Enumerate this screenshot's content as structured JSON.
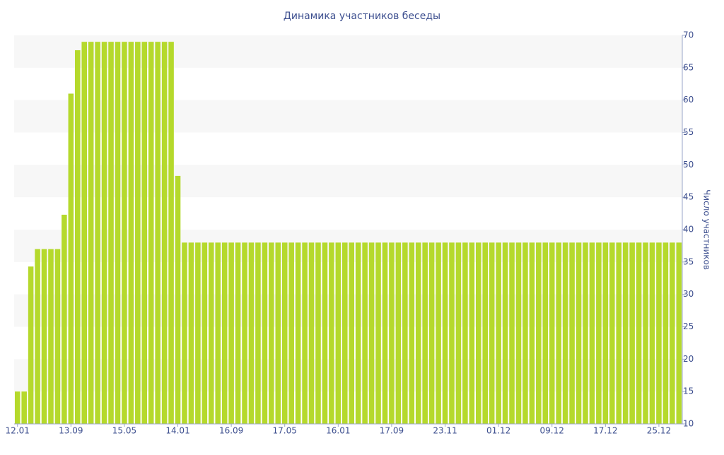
{
  "chart_data": {
    "type": "bar",
    "title": "Динамика участников беседы",
    "y_label": "Число участников",
    "categories": [
      "12.01",
      null,
      null,
      null,
      null,
      null,
      null,
      null,
      "13.09",
      null,
      null,
      null,
      null,
      null,
      null,
      null,
      "15.05",
      null,
      null,
      null,
      null,
      null,
      null,
      null,
      "14.01",
      null,
      null,
      null,
      null,
      null,
      null,
      null,
      "16.09",
      null,
      null,
      null,
      null,
      null,
      null,
      null,
      "17.05",
      null,
      null,
      null,
      null,
      null,
      null,
      null,
      "16.01",
      null,
      null,
      null,
      null,
      null,
      null,
      null,
      "17.09",
      null,
      null,
      null,
      null,
      null,
      null,
      null,
      "23.11",
      null,
      null,
      null,
      null,
      null,
      null,
      null,
      "01.12",
      null,
      null,
      null,
      null,
      null,
      null,
      null,
      "09.12",
      null,
      null,
      null,
      null,
      null,
      null,
      null,
      "17.12",
      null,
      null,
      null,
      null,
      null,
      null,
      null,
      "25.12",
      null,
      null,
      null
    ],
    "values": [
      15,
      15,
      34.3,
      37,
      37,
      37,
      37,
      42.3,
      61,
      67.7,
      69,
      69,
      69,
      69,
      69,
      69,
      69,
      69,
      69,
      69,
      69,
      69,
      69,
      69,
      48.3,
      38,
      38,
      38,
      38,
      38,
      38,
      38,
      38,
      38,
      38,
      38,
      38,
      38,
      38,
      38,
      38,
      38,
      38,
      38,
      38,
      38,
      38,
      38,
      38,
      38,
      38,
      38,
      38,
      38,
      38,
      38,
      38,
      38,
      38,
      38,
      38,
      38,
      38,
      38,
      38,
      38,
      38,
      38,
      38,
      38,
      38,
      38,
      38,
      38,
      38,
      38,
      38,
      38,
      38,
      38,
      38,
      38,
      38,
      38,
      38,
      38,
      38,
      38,
      38,
      38,
      38,
      38,
      38,
      38,
      38,
      38,
      38,
      38,
      38,
      38
    ],
    "color": "#b5d92c",
    "ylim": [
      10,
      70
    ],
    "yticks": [
      10,
      15,
      20,
      25,
      30,
      35,
      40,
      45,
      50,
      55,
      60,
      65,
      70
    ],
    "y_axis_side": "right",
    "grid": true
  }
}
